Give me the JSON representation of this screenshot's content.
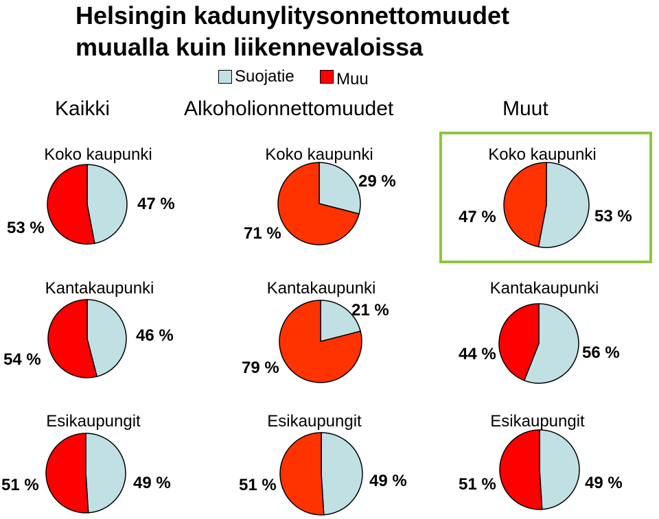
{
  "title_line1": "Helsingin kadunylitysonnettomuudet",
  "title_line2": "muualla kuin liikennevaloissa",
  "legend": [
    {
      "label": "Suojatie",
      "color": "#c0e0e4"
    },
    {
      "label": "Muu",
      "color": "#ff0000"
    }
  ],
  "columns": [
    "Kaikki",
    "Alkoholionnettomuudet",
    "Muut"
  ],
  "chart_data": [
    {
      "type": "pie",
      "group": "Kaikki",
      "title": "Koko kaupunki",
      "categories": [
        "Suojatie",
        "Muu"
      ],
      "values": [
        47,
        53
      ],
      "labels": [
        "47 %",
        "53 %"
      ],
      "colors": [
        "#c0e0e4",
        "#ff0000"
      ]
    },
    {
      "type": "pie",
      "group": "Alkoholionnettomuudet",
      "title": "Koko kaupunki",
      "categories": [
        "Suojatie",
        "Muu"
      ],
      "values": [
        29,
        71
      ],
      "labels": [
        "29 %",
        "71 %"
      ],
      "colors": [
        "#c0e0e4",
        "#ff3300"
      ]
    },
    {
      "type": "pie",
      "group": "Muut",
      "title": "Koko kaupunki",
      "categories": [
        "Suojatie",
        "Muu"
      ],
      "values": [
        53,
        47
      ],
      "labels": [
        "53 %",
        "47 %"
      ],
      "colors": [
        "#c0e0e4",
        "#ff3300"
      ]
    },
    {
      "type": "pie",
      "group": "Kaikki",
      "title": "Kantakaupunki",
      "categories": [
        "Suojatie",
        "Muu"
      ],
      "values": [
        46,
        54
      ],
      "labels": [
        "46 %",
        "54 %"
      ],
      "colors": [
        "#c0e0e4",
        "#ff0000"
      ]
    },
    {
      "type": "pie",
      "group": "Alkoholionnettomuudet",
      "title": "Kantakaupunki",
      "categories": [
        "Suojatie",
        "Muu"
      ],
      "values": [
        21,
        79
      ],
      "labels": [
        "21 %",
        "79 %"
      ],
      "colors": [
        "#c0e0e4",
        "#ff3300"
      ]
    },
    {
      "type": "pie",
      "group": "Muut",
      "title": "Kantakaupunki",
      "categories": [
        "Suojatie",
        "Muu"
      ],
      "values": [
        56,
        44
      ],
      "labels": [
        "56 %",
        "44 %"
      ],
      "colors": [
        "#c0e0e4",
        "#ff0000"
      ]
    },
    {
      "type": "pie",
      "group": "Kaikki",
      "title": "Esikaupungit",
      "categories": [
        "Suojatie",
        "Muu"
      ],
      "values": [
        49,
        51
      ],
      "labels": [
        "49 %",
        "51 %"
      ],
      "colors": [
        "#c0e0e4",
        "#ff0000"
      ]
    },
    {
      "type": "pie",
      "group": "Alkoholionnettomuudet",
      "title": "Esikaupungit",
      "categories": [
        "Suojatie",
        "Muu"
      ],
      "values": [
        49,
        51
      ],
      "labels": [
        "49 %",
        "51 %"
      ],
      "colors": [
        "#c0e0e4",
        "#ff3300"
      ]
    },
    {
      "type": "pie",
      "group": "Muut",
      "title": "Esikaupungit",
      "categories": [
        "Suojatie",
        "Muu"
      ],
      "values": [
        49,
        51
      ],
      "labels": [
        "49 %",
        "51 %"
      ],
      "colors": [
        "#c0e0e4",
        "#ff0000"
      ]
    }
  ]
}
